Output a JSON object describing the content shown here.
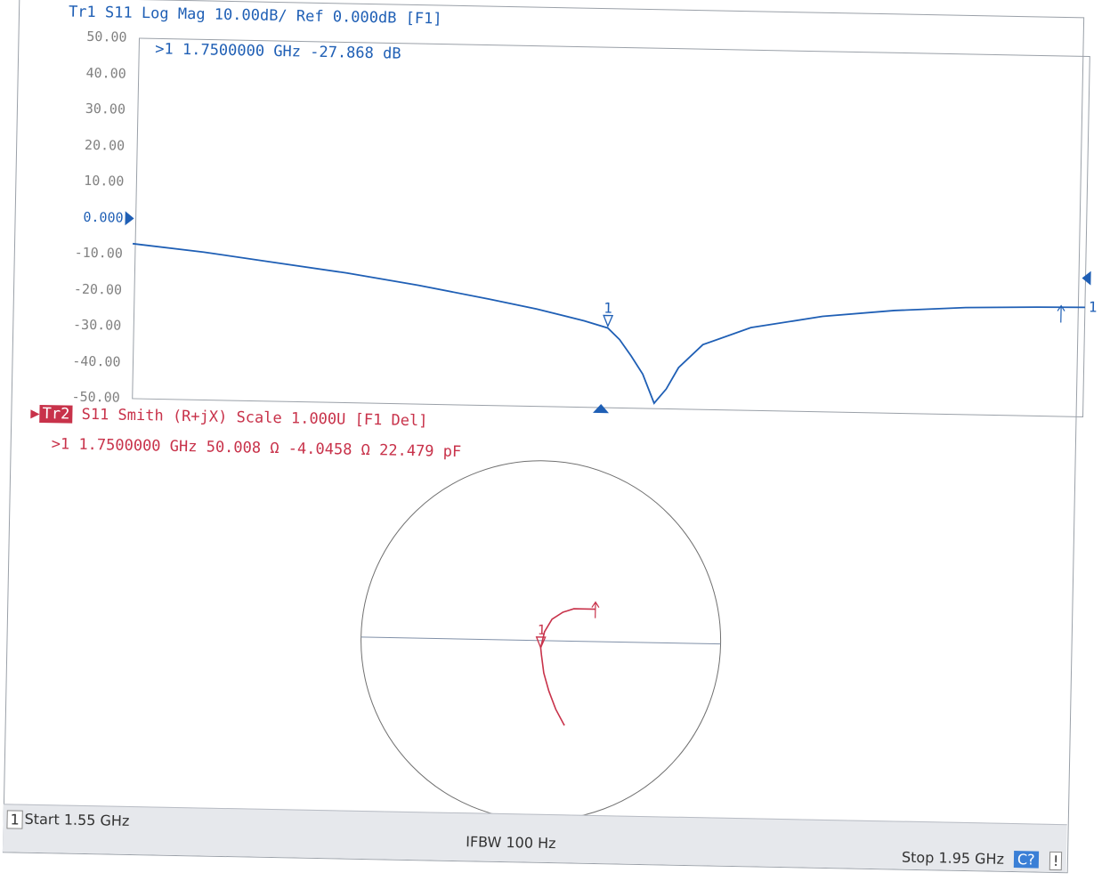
{
  "trace1": {
    "header": "Tr1 S11 Log Mag 10.00dB/ Ref 0.000dB [F1]",
    "marker_readout": ">1  1.7500000 GHz -27.868 dB",
    "color": "#1f5fb5"
  },
  "trace2": {
    "badge": "Tr2",
    "header": "S11 Smith (R+jX) Scale 1.000U [F1 Del]",
    "marker_readout": ">1  1.7500000 GHz  50.008 Ω -4.0458 Ω  22.479 pF",
    "color": "#c8324a"
  },
  "status_bar": {
    "channel": "1",
    "start": "Start 1.55 GHz",
    "ifbw": "IFBW 100 Hz",
    "stop": "Stop 1.95 GHz",
    "cal": "C?",
    "extra": "!"
  },
  "chart_data": [
    {
      "type": "line",
      "name": "Tr1 S11 Log Mag",
      "x_unit": "GHz",
      "y_unit": "dB",
      "xlim": [
        1.55,
        1.95
      ],
      "ylim": [
        -50,
        50
      ],
      "y_ticks": [
        "50.00",
        "40.00",
        "30.00",
        "20.00",
        "10.00",
        "0.000",
        "-10.00",
        "-20.00",
        "-30.00",
        "-40.00",
        "-50.00"
      ],
      "reference_value": 0,
      "x": [
        1.55,
        1.58,
        1.61,
        1.64,
        1.67,
        1.7,
        1.72,
        1.74,
        1.75,
        1.755,
        1.76,
        1.765,
        1.77,
        1.775,
        1.78,
        1.79,
        1.81,
        1.84,
        1.87,
        1.9,
        1.93,
        1.95
      ],
      "y": [
        -7.0,
        -9.0,
        -11.5,
        -14.0,
        -17.0,
        -20.5,
        -23.0,
        -26.0,
        -27.868,
        -31.0,
        -35.5,
        -40.5,
        -48.5,
        -44.5,
        -38.5,
        -32.0,
        -27.0,
        -23.5,
        -21.5,
        -20.3,
        -19.8,
        -19.6
      ],
      "markers": [
        {
          "label": "1",
          "x": 1.75,
          "y": -27.868,
          "kind": "active"
        },
        {
          "label": "1",
          "x": 1.95,
          "y": -19.6,
          "kind": "end"
        }
      ],
      "stimulus_marker_x": 1.75,
      "aux_marker_x": 1.94
    },
    {
      "type": "scatter",
      "name": "Tr2 S11 Smith (R+jX)",
      "scale": "1.000U",
      "coords": "reflection coefficient (Re Γ, Im Γ)",
      "points": [
        [
          0.14,
          -0.47
        ],
        [
          0.09,
          -0.38
        ],
        [
          0.05,
          -0.28
        ],
        [
          0.02,
          -0.18
        ],
        [
          0.005,
          -0.08
        ],
        [
          0.0,
          -0.04
        ],
        [
          0.02,
          0.05
        ],
        [
          0.06,
          0.12
        ],
        [
          0.12,
          0.16
        ],
        [
          0.18,
          0.18
        ],
        [
          0.3,
          0.18
        ]
      ],
      "markers": [
        {
          "label": "1",
          "point": [
            0.0,
            -0.04
          ],
          "kind": "active"
        },
        {
          "label": "",
          "point": [
            0.3,
            0.18
          ],
          "kind": "end"
        }
      ]
    }
  ]
}
